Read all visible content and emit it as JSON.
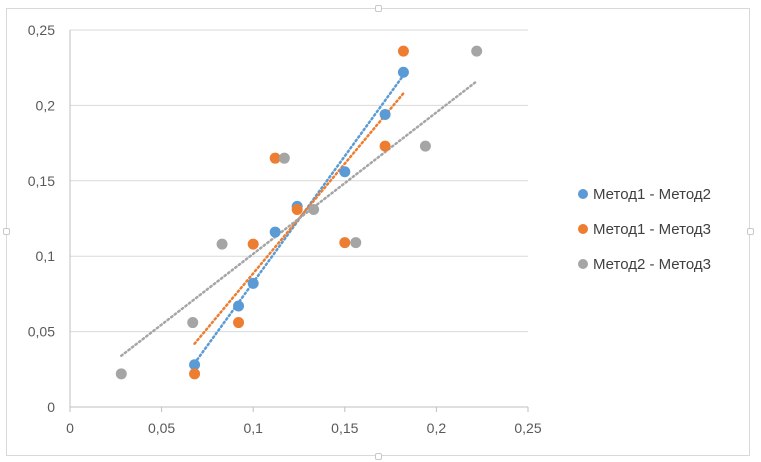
{
  "chart_data": {
    "type": "scatter",
    "title": "",
    "xlabel": "",
    "ylabel": "",
    "xlim": [
      0,
      0.25
    ],
    "ylim": [
      0,
      0.25
    ],
    "x_ticks": [
      "0",
      "0,05",
      "0,1",
      "0,15",
      "0,2",
      "0,25"
    ],
    "y_ticks": [
      "0",
      "0,05",
      "0,1",
      "0,15",
      "0,2",
      "0,25"
    ],
    "grid": "horizontal",
    "legend_position": "right",
    "trendlines": "linear, dotted",
    "series": [
      {
        "name": "Метод1 - Метод2",
        "color": "#5b9bd5",
        "points": [
          [
            0.068,
            0.028
          ],
          [
            0.092,
            0.067
          ],
          [
            0.1,
            0.082
          ],
          [
            0.112,
            0.116
          ],
          [
            0.124,
            0.133
          ],
          [
            0.15,
            0.156
          ],
          [
            0.172,
            0.194
          ],
          [
            0.182,
            0.222
          ]
        ],
        "trend": [
          [
            0.068,
            0.029
          ],
          [
            0.182,
            0.22
          ]
        ]
      },
      {
        "name": "Метод1 - Метод3",
        "color": "#ed7d31",
        "points": [
          [
            0.068,
            0.022
          ],
          [
            0.092,
            0.056
          ],
          [
            0.1,
            0.108
          ],
          [
            0.112,
            0.165
          ],
          [
            0.124,
            0.131
          ],
          [
            0.15,
            0.109
          ],
          [
            0.172,
            0.173
          ],
          [
            0.182,
            0.236
          ]
        ],
        "trend": [
          [
            0.068,
            0.042
          ],
          [
            0.182,
            0.208
          ]
        ]
      },
      {
        "name": "Метод2 - Метод3",
        "color": "#a5a5a5",
        "points": [
          [
            0.028,
            0.022
          ],
          [
            0.067,
            0.056
          ],
          [
            0.083,
            0.108
          ],
          [
            0.117,
            0.165
          ],
          [
            0.133,
            0.131
          ],
          [
            0.156,
            0.109
          ],
          [
            0.194,
            0.173
          ],
          [
            0.222,
            0.236
          ]
        ],
        "trend": [
          [
            0.028,
            0.034
          ],
          [
            0.222,
            0.216
          ]
        ]
      }
    ]
  }
}
